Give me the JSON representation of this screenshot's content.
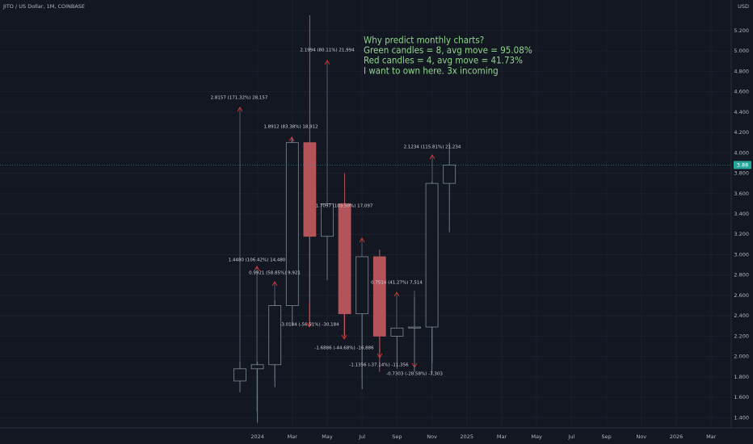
{
  "chart_data": {
    "type": "candlestick",
    "title": "JITO / US Dollar, 1M, COINBASE",
    "currency": "USD",
    "categories": [
      null,
      "2024",
      null,
      "Mar",
      null,
      "May",
      null,
      "Jul",
      null,
      "Sep",
      null,
      "Nov",
      null,
      "2025",
      null,
      "Mar",
      null,
      "May",
      null,
      "Jul",
      null,
      "Sep",
      null,
      "Nov",
      null,
      "2026",
      null,
      "Mar"
    ],
    "open": [
      1.76,
      1.88,
      1.92,
      2.5,
      4.1,
      3.18,
      3.5,
      2.42,
      2.98,
      2.2,
      2.28,
      2.29,
      3.7,
      null,
      null,
      null,
      null,
      null,
      null,
      null,
      null,
      null,
      null,
      null,
      null,
      null,
      null,
      null
    ],
    "high": [
      1.95,
      1.95,
      2.55,
      4.15,
      5.35,
      3.5,
      3.8,
      2.95,
      3.05,
      2.28,
      2.58,
      3.72,
      4.1,
      null,
      null,
      null,
      null,
      null,
      null,
      null,
      null,
      null,
      null,
      null,
      null,
      null,
      null,
      null
    ],
    "low": [
      1.65,
      1.35,
      1.7,
      2.3,
      2.3,
      2.75,
      2.2,
      1.68,
      1.85,
      1.88,
      1.85,
      1.82,
      3.22,
      null,
      null,
      null,
      null,
      null,
      null,
      null,
      null,
      null,
      null,
      null,
      null,
      null,
      null,
      null
    ],
    "close": [
      1.88,
      1.92,
      2.5,
      4.1,
      3.18,
      3.5,
      2.42,
      2.98,
      2.2,
      2.28,
      2.29,
      3.7,
      3.88,
      null,
      null,
      null,
      null,
      null,
      null,
      null,
      null,
      null,
      null,
      null,
      null,
      null,
      null,
      null
    ],
    "up_color": "#26a69a",
    "down_color": "#b4545a",
    "ylim": [
      1.3,
      5.5
    ],
    "yticks": [
      {
        "value": 1.4,
        "label": "1.400"
      },
      {
        "value": 1.6,
        "label": "1.600"
      },
      {
        "value": 1.8,
        "label": "1.800"
      },
      {
        "value": 2.0,
        "label": "2.000"
      },
      {
        "value": 2.2,
        "label": "2.200"
      },
      {
        "value": 2.4,
        "label": "2.400"
      },
      {
        "value": 2.6,
        "label": "2.600"
      },
      {
        "value": 2.8,
        "label": "2.800"
      },
      {
        "value": 3.0,
        "label": "3.000"
      },
      {
        "value": 3.2,
        "label": "3.200"
      },
      {
        "value": 3.4,
        "label": "3.400"
      },
      {
        "value": 3.6,
        "label": "3.600"
      },
      {
        "value": 3.8,
        "label": "3.800"
      },
      {
        "value": 4.0,
        "label": "4.000"
      },
      {
        "value": 4.2,
        "label": "4.200"
      },
      {
        "value": 4.4,
        "label": "4.400"
      },
      {
        "value": 4.6,
        "label": "4.600"
      },
      {
        "value": 4.8,
        "label": "4.800"
      },
      {
        "value": 5.0,
        "label": "5.000"
      },
      {
        "value": 5.2,
        "label": "5.200"
      }
    ],
    "grid": true,
    "current_price": {
      "value": 3.88,
      "label": "3.88"
    },
    "annotations": [
      "2.8157 (171.32%) 28,157",
      "1.8912 (83.38%) 18,912",
      "2.1994 (80.11%) 21,994",
      "1.4480 (106.42%) 14,480",
      "0.9921 (58.85%) 9,921",
      "-3.0184 (-56.51%) -30,184",
      "1.7097 (103.50%) 17,097",
      "-1.6886 (-44.68%) -16,886",
      "0.7514 (41.27%) 7,514",
      "-1.1356 (-37.14%) -11,356",
      "-0.7303 (-28.58%) -7,303",
      "2.1234 (115.81%) 21,234"
    ],
    "note_lines": [
      "Why predict monthly charts?",
      "Green candles = 8, avg move = 95.08%",
      "Red candles = 4, avg move = 41.73%",
      "I want to own here. 3x incoming"
    ]
  }
}
